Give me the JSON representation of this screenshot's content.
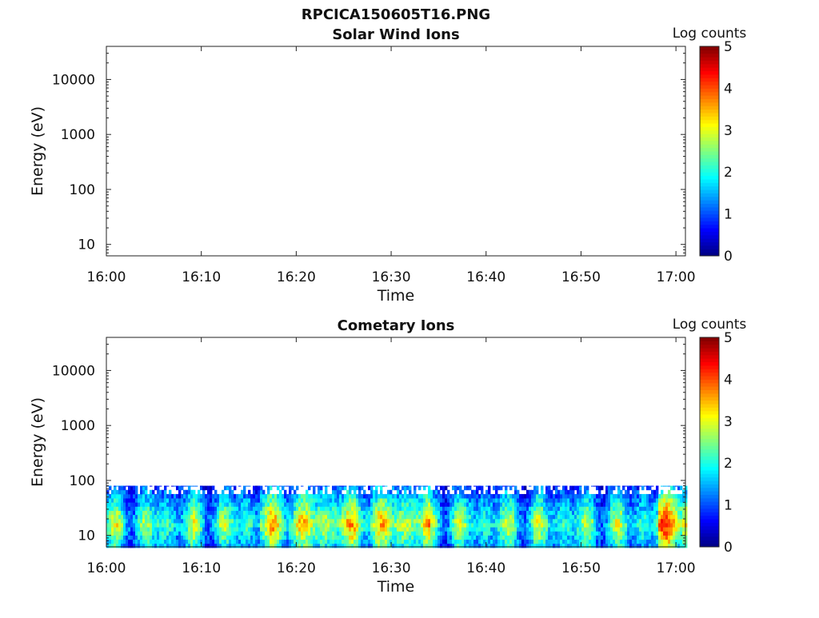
{
  "chart_data": {
    "type": "heatmap",
    "title": "RPCICA150605T16.PNG",
    "colormap": "jet",
    "panels": [
      {
        "subtitle": "Solar Wind Ions",
        "xlabel": "Time",
        "ylabel": "Energy (eV)",
        "x_ticks": [
          "16:00",
          "16:10",
          "16:20",
          "16:30",
          "16:40",
          "16:50",
          "17:00"
        ],
        "y_ticks": [
          "10",
          "100",
          "1000",
          "10000"
        ],
        "y_scale": "log",
        "colorbar": {
          "label": "Log counts",
          "ticks": [
            "0",
            "1",
            "2",
            "3",
            "4",
            "5"
          ],
          "range": [
            0,
            5
          ]
        },
        "data": "empty"
      },
      {
        "subtitle": "Cometary Ions",
        "xlabel": "Time",
        "ylabel": "Energy (eV)",
        "x_ticks": [
          "16:00",
          "16:10",
          "16:20",
          "16:30",
          "16:40",
          "16:50",
          "17:00"
        ],
        "y_ticks": [
          "10",
          "100",
          "1000",
          "10000"
        ],
        "y_scale": "log",
        "colorbar": {
          "label": "Log counts",
          "ticks": [
            "0",
            "1",
            "2",
            "3",
            "4",
            "5"
          ],
          "range": [
            0,
            5
          ]
        },
        "data": {
          "energy_range_eV": [
            6,
            80
          ],
          "log_counts_range": [
            0,
            4.6
          ]
        }
      }
    ]
  }
}
